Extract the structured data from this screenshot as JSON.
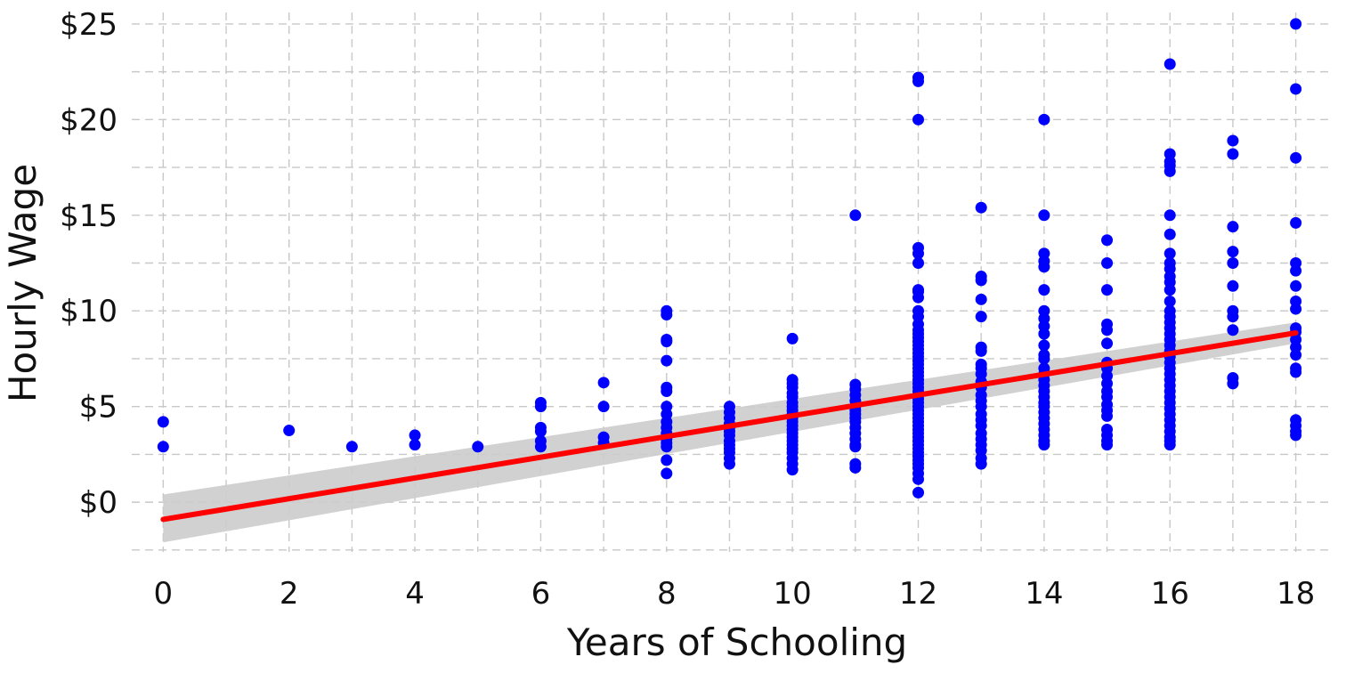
{
  "chart_data": {
    "type": "scatter",
    "xlabel": "Years of Schooling",
    "ylabel": "Hourly Wage",
    "xlim": [
      -0.5,
      18.6
    ],
    "ylim": [
      -2.6,
      25.6
    ],
    "x_ticks": [
      0,
      2,
      4,
      6,
      8,
      10,
      12,
      14,
      16,
      18
    ],
    "x_tick_labels": [
      "0",
      "2",
      "4",
      "6",
      "8",
      "10",
      "12",
      "14",
      "16",
      "18"
    ],
    "y_ticks": [
      0,
      5,
      10,
      15,
      20,
      25
    ],
    "y_tick_labels": [
      "$0",
      "$5",
      "$10",
      "$15",
      "$20",
      "$25"
    ],
    "grid": true,
    "grid_style": "dashed",
    "legend": "none",
    "point_color": "#0000ff",
    "fit_color": "#ff0000",
    "band_color": "#cccccc",
    "fit_line": {
      "type": "linear regression",
      "x": [
        0,
        18
      ],
      "y": [
        -0.9,
        8.85
      ]
    },
    "confidence_band": {
      "x": [
        0,
        18
      ],
      "lower": [
        -2.1,
        8.3
      ],
      "upper": [
        0.4,
        9.4
      ]
    },
    "points": [
      {
        "x": 0,
        "y": [
          4.2,
          2.9
        ]
      },
      {
        "x": 2,
        "y": [
          3.75
        ]
      },
      {
        "x": 3,
        "y": [
          2.9
        ]
      },
      {
        "x": 4,
        "y": [
          3.5,
          3.0
        ]
      },
      {
        "x": 5,
        "y": [
          2.9
        ]
      },
      {
        "x": 6,
        "y": [
          5.2,
          5.0,
          3.9,
          3.7,
          3.2,
          2.9
        ]
      },
      {
        "x": 7,
        "y": [
          6.25,
          5.0,
          3.4,
          3.1
        ]
      },
      {
        "x": 8,
        "y": [
          10.0,
          9.8,
          8.5,
          8.4,
          7.4,
          6.0,
          5.8,
          5.0,
          4.6,
          4.2,
          3.9,
          3.6,
          3.3,
          3.1,
          2.9,
          2.2,
          1.5
        ]
      },
      {
        "x": 9,
        "y": [
          5.0,
          4.7,
          4.4,
          4.1,
          3.9,
          3.7,
          3.5,
          3.2,
          3.0,
          2.8,
          2.6,
          2.3,
          2.0
        ]
      },
      {
        "x": 10,
        "y": [
          8.55,
          6.4,
          6.2,
          6.0,
          5.7,
          5.5,
          5.2,
          5.0,
          4.8,
          4.6,
          4.4,
          4.2,
          4.0,
          3.8,
          3.6,
          3.4,
          3.2,
          3.0,
          2.8,
          2.6,
          2.3,
          2.0,
          1.7
        ]
      },
      {
        "x": 11,
        "y": [
          15.0,
          6.15,
          5.9,
          5.6,
          5.3,
          5.0,
          4.8,
          4.6,
          4.4,
          4.2,
          3.9,
          3.6,
          3.3,
          3.0,
          2.9,
          2.0,
          1.8
        ]
      },
      {
        "x": 12,
        "y": [
          22.2,
          22.0,
          20.0,
          13.3,
          13.0,
          12.5,
          11.1,
          11.0,
          10.7,
          10.0,
          9.7,
          9.3,
          9.0,
          8.8,
          8.6,
          8.4,
          8.2,
          8.0,
          7.8,
          7.6,
          7.4,
          7.2,
          7.0,
          6.8,
          6.6,
          6.4,
          6.2,
          6.0,
          5.8,
          5.6,
          5.4,
          5.2,
          5.0,
          4.8,
          4.6,
          4.4,
          4.2,
          4.0,
          3.8,
          3.6,
          3.4,
          3.2,
          3.0,
          2.8,
          2.6,
          2.4,
          2.2,
          2.0,
          1.8,
          1.5,
          1.2,
          0.5
        ]
      },
      {
        "x": 13,
        "y": [
          15.4,
          11.8,
          11.6,
          10.6,
          9.7,
          8.1,
          7.9,
          7.2,
          7.0,
          6.7,
          6.3,
          6.0,
          5.6,
          5.3,
          5.0,
          4.6,
          4.3,
          4.0,
          3.6,
          3.3,
          3.0,
          2.7,
          2.3,
          2.0
        ]
      },
      {
        "x": 14,
        "y": [
          20.0,
          15.0,
          13.0,
          12.6,
          12.3,
          11.1,
          10.0,
          9.6,
          9.2,
          8.8,
          8.2,
          7.7,
          7.5,
          7.0,
          6.7,
          6.4,
          6.1,
          5.8,
          5.5,
          5.2,
          5.0,
          4.7,
          4.4,
          4.1,
          3.8,
          3.5,
          3.2,
          3.0
        ]
      },
      {
        "x": 15,
        "y": [
          13.7,
          12.5,
          11.1,
          9.3,
          9.0,
          8.3,
          7.3,
          7.0,
          6.6,
          6.2,
          5.8,
          5.5,
          5.1,
          4.8,
          4.5,
          3.8,
          3.5,
          3.2,
          3.0
        ]
      },
      {
        "x": 16,
        "y": [
          22.9,
          18.2,
          17.8,
          17.6,
          17.3,
          15.0,
          14.0,
          13.0,
          12.5,
          12.2,
          11.8,
          11.5,
          11.1,
          10.5,
          10.0,
          9.7,
          9.4,
          9.1,
          8.8,
          8.5,
          8.2,
          7.9,
          7.6,
          7.3,
          7.0,
          6.7,
          6.4,
          6.1,
          5.8,
          5.5,
          5.2,
          4.9,
          4.6,
          4.3,
          4.0,
          3.7,
          3.4,
          3.2,
          3.0
        ]
      },
      {
        "x": 17,
        "y": [
          18.9,
          18.2,
          14.4,
          13.1,
          12.5,
          11.3,
          10.0,
          9.7,
          9.0,
          6.5,
          6.2
        ]
      },
      {
        "x": 18,
        "y": [
          25.0,
          21.6,
          18.0,
          14.6,
          12.5,
          12.1,
          11.3,
          10.5,
          10.1,
          9.1,
          8.9,
          8.5,
          8.1,
          7.7,
          7.0,
          6.8,
          4.3,
          4.0,
          3.7,
          3.5
        ]
      }
    ]
  }
}
